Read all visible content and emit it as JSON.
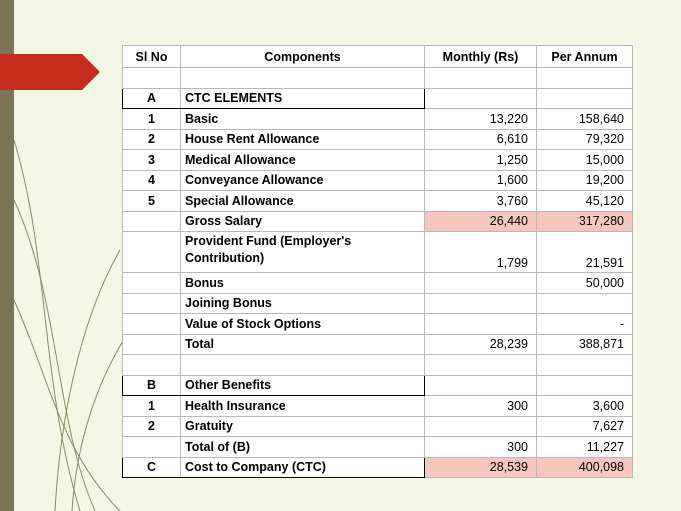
{
  "table": {
    "headers": {
      "sl": "Sl No",
      "component": "Components",
      "monthly": "Monthly (Rs)",
      "annual": "Per Annum"
    },
    "section_a": {
      "sl": "A",
      "title": "CTC ELEMENTS"
    },
    "rows_a": [
      {
        "sl": "1",
        "component": "Basic",
        "monthly": "13,220",
        "annual": "158,640"
      },
      {
        "sl": "2",
        "component": "House Rent Allowance",
        "monthly": "6,610",
        "annual": "79,320"
      },
      {
        "sl": "3",
        "component": "Medical Allowance",
        "monthly": "1,250",
        "annual": "15,000"
      },
      {
        "sl": "4",
        "component": "Conveyance Allowance",
        "monthly": "1,600",
        "annual": "19,200"
      },
      {
        "sl": "5",
        "component": "Special Allowance",
        "monthly": "3,760",
        "annual": "45,120"
      }
    ],
    "gross": {
      "component": "Gross Salary",
      "monthly": "26,440",
      "annual": "317,280"
    },
    "pf": {
      "component": "Provident Fund (Employer's Contribution)",
      "monthly": "1,799",
      "annual": "21,591"
    },
    "bonus": {
      "component": "Bonus",
      "monthly": "",
      "annual": "50,000"
    },
    "joining": {
      "component": "Joining Bonus",
      "monthly": "",
      "annual": ""
    },
    "stock": {
      "component": "Value of Stock Options",
      "monthly": "",
      "annual": "-"
    },
    "total_a": {
      "component": "Total",
      "monthly": "28,239",
      "annual": "388,871"
    },
    "section_b": {
      "sl": "B",
      "title": "Other Benefits"
    },
    "rows_b": [
      {
        "sl": "1",
        "component": "Health Insurance",
        "monthly": "300",
        "annual": "3,600"
      },
      {
        "sl": "2",
        "component": "Gratuity",
        "monthly": "",
        "annual": "7,627"
      }
    ],
    "total_b": {
      "component": "Total of (B)",
      "monthly": "300",
      "annual": "11,227"
    },
    "section_c": {
      "sl": "C",
      "component": "Cost to Company (CTC)",
      "monthly": "28,539",
      "annual": "400,098"
    }
  },
  "colors": {
    "highlight": "#f7c6be",
    "arrow": "#c4301d",
    "background": "#f4f6e6",
    "sidebar": "#7d7458"
  }
}
